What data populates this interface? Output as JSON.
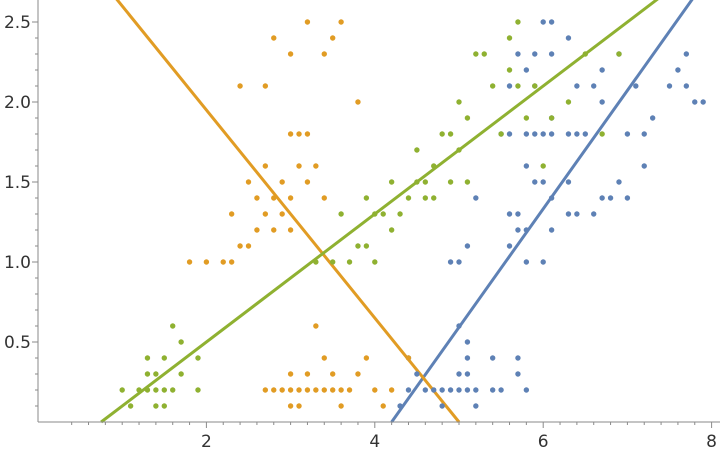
{
  "chart_data": {
    "type": "scatter",
    "xlim": [
      0.0,
      8.0
    ],
    "ylim": [
      0.0,
      2.6
    ],
    "x_ticks": [
      {
        "value": 2,
        "label": "2"
      },
      {
        "value": 4,
        "label": "4"
      },
      {
        "value": 6,
        "label": "6"
      },
      {
        "value": 8,
        "label": "8"
      }
    ],
    "y_ticks": [
      {
        "value": 0.5,
        "label": "0.5"
      },
      {
        "value": 1.0,
        "label": "1.0"
      },
      {
        "value": 1.5,
        "label": "1.5"
      },
      {
        "value": 2.0,
        "label": "2.0"
      },
      {
        "value": 2.5,
        "label": "2.5"
      }
    ],
    "x_minor_ticks": [
      0.4,
      0.6,
      0.8,
      1.0,
      1.2,
      1.4,
      1.6,
      1.8,
      2.2,
      2.4,
      2.6,
      2.8,
      3.0,
      3.2,
      3.4,
      3.6,
      3.8,
      4.2,
      4.4,
      4.6,
      4.8,
      5.0,
      5.2,
      5.4,
      5.6,
      5.8,
      6.2,
      6.4,
      6.6,
      6.8,
      7.0,
      7.2,
      7.4,
      7.6,
      7.8
    ],
    "y_minor_ticks": [
      0.1,
      0.2,
      0.3,
      0.4,
      0.6,
      0.7,
      0.8,
      0.9,
      1.1,
      1.2,
      1.3,
      1.4,
      1.6,
      1.7,
      1.8,
      1.9,
      2.1,
      2.2,
      2.3,
      2.4
    ],
    "grid": false,
    "legend": "none",
    "series": [
      {
        "color": "#5e81b5",
        "points": [
          [
            4.3,
            0.1
          ],
          [
            4.4,
            0.2
          ],
          [
            4.4,
            0.4
          ],
          [
            4.5,
            0.3
          ],
          [
            4.6,
            0.2
          ],
          [
            4.7,
            0.2
          ],
          [
            4.8,
            0.1
          ],
          [
            4.8,
            0.2
          ],
          [
            4.9,
            0.2
          ],
          [
            5.0,
            0.2
          ],
          [
            5.0,
            0.3
          ],
          [
            5.0,
            0.6
          ],
          [
            5.1,
            0.2
          ],
          [
            5.1,
            0.3
          ],
          [
            5.1,
            0.4
          ],
          [
            5.1,
            0.5
          ],
          [
            5.2,
            0.1
          ],
          [
            5.2,
            0.2
          ],
          [
            5.4,
            0.2
          ],
          [
            5.4,
            0.4
          ],
          [
            5.5,
            0.2
          ],
          [
            5.7,
            0.3
          ],
          [
            5.7,
            0.4
          ],
          [
            5.8,
            0.2
          ],
          [
            4.9,
            1.0
          ],
          [
            5.0,
            1.0
          ],
          [
            5.1,
            1.1
          ],
          [
            5.2,
            1.4
          ],
          [
            5.6,
            1.1
          ],
          [
            5.6,
            1.3
          ],
          [
            5.7,
            1.2
          ],
          [
            5.7,
            1.3
          ],
          [
            5.8,
            1.0
          ],
          [
            5.8,
            1.2
          ],
          [
            5.9,
            1.5
          ],
          [
            6.0,
            1.0
          ],
          [
            6.0,
            1.5
          ],
          [
            6.1,
            1.2
          ],
          [
            6.1,
            1.4
          ],
          [
            6.3,
            1.3
          ],
          [
            6.4,
            1.3
          ],
          [
            6.6,
            1.3
          ],
          [
            6.7,
            1.4
          ],
          [
            6.8,
            1.4
          ],
          [
            6.9,
            1.5
          ],
          [
            7.0,
            1.4
          ],
          [
            5.5,
            1.8
          ],
          [
            5.6,
            1.8
          ],
          [
            5.6,
            2.1
          ],
          [
            5.7,
            2.3
          ],
          [
            5.8,
            1.6
          ],
          [
            5.8,
            1.8
          ],
          [
            5.8,
            2.2
          ],
          [
            5.9,
            1.8
          ],
          [
            5.9,
            2.1
          ],
          [
            5.9,
            2.3
          ],
          [
            6.0,
            1.8
          ],
          [
            6.0,
            2.5
          ],
          [
            6.1,
            1.8
          ],
          [
            6.1,
            1.9
          ],
          [
            6.1,
            2.3
          ],
          [
            6.1,
            2.5
          ],
          [
            6.3,
            1.5
          ],
          [
            6.3,
            1.8
          ],
          [
            6.3,
            2.4
          ],
          [
            6.4,
            1.8
          ],
          [
            6.4,
            2.1
          ],
          [
            6.5,
            1.8
          ],
          [
            6.6,
            2.1
          ],
          [
            6.7,
            2.0
          ],
          [
            6.7,
            2.2
          ],
          [
            6.9,
            2.3
          ],
          [
            7.0,
            1.8
          ],
          [
            7.1,
            2.1
          ],
          [
            7.2,
            1.6
          ],
          [
            7.2,
            1.8
          ],
          [
            7.3,
            1.9
          ],
          [
            7.5,
            2.1
          ],
          [
            7.6,
            2.2
          ],
          [
            7.7,
            2.1
          ],
          [
            7.7,
            2.3
          ],
          [
            7.8,
            2.0
          ],
          [
            7.9,
            2.0
          ]
        ]
      },
      {
        "color": "#e19c24",
        "points": [
          [
            2.7,
            0.2
          ],
          [
            2.8,
            0.2
          ],
          [
            2.9,
            0.2
          ],
          [
            3.0,
            0.2
          ],
          [
            3.0,
            0.1
          ],
          [
            3.0,
            0.3
          ],
          [
            3.1,
            0.2
          ],
          [
            3.1,
            0.1
          ],
          [
            3.2,
            0.2
          ],
          [
            3.2,
            0.3
          ],
          [
            3.3,
            0.2
          ],
          [
            3.4,
            0.2
          ],
          [
            3.4,
            0.4
          ],
          [
            3.5,
            0.2
          ],
          [
            3.5,
            0.3
          ],
          [
            3.6,
            0.2
          ],
          [
            3.6,
            0.1
          ],
          [
            3.7,
            0.2
          ],
          [
            3.8,
            0.3
          ],
          [
            3.9,
            0.4
          ],
          [
            4.0,
            0.2
          ],
          [
            4.1,
            0.1
          ],
          [
            4.2,
            0.2
          ],
          [
            4.4,
            0.4
          ],
          [
            3.3,
            0.6
          ],
          [
            1.8,
            1.0
          ],
          [
            2.0,
            1.0
          ],
          [
            2.2,
            1.0
          ],
          [
            2.3,
            1.0
          ],
          [
            2.3,
            1.3
          ],
          [
            2.4,
            1.1
          ],
          [
            2.5,
            1.1
          ],
          [
            2.5,
            1.5
          ],
          [
            2.6,
            1.2
          ],
          [
            2.6,
            1.4
          ],
          [
            2.7,
            1.6
          ],
          [
            2.7,
            1.3
          ],
          [
            2.8,
            1.2
          ],
          [
            2.8,
            1.4
          ],
          [
            2.9,
            1.3
          ],
          [
            2.9,
            1.5
          ],
          [
            3.0,
            1.2
          ],
          [
            3.0,
            1.4
          ],
          [
            3.0,
            1.8
          ],
          [
            3.1,
            1.6
          ],
          [
            3.1,
            1.8
          ],
          [
            3.2,
            1.5
          ],
          [
            3.2,
            1.8
          ],
          [
            3.3,
            1.6
          ],
          [
            3.4,
            1.4
          ],
          [
            3.4,
            2.3
          ],
          [
            3.5,
            2.4
          ],
          [
            3.6,
            2.5
          ],
          [
            3.8,
            2.0
          ],
          [
            2.4,
            2.1
          ],
          [
            2.7,
            2.1
          ],
          [
            3.0,
            2.3
          ],
          [
            3.2,
            2.5
          ],
          [
            2.8,
            2.4
          ]
        ]
      },
      {
        "color": "#8fb131",
        "points": [
          [
            1.0,
            0.2
          ],
          [
            1.1,
            0.1
          ],
          [
            1.2,
            0.2
          ],
          [
            1.3,
            0.2
          ],
          [
            1.3,
            0.3
          ],
          [
            1.3,
            0.4
          ],
          [
            1.4,
            0.1
          ],
          [
            1.4,
            0.2
          ],
          [
            1.4,
            0.3
          ],
          [
            1.5,
            0.1
          ],
          [
            1.5,
            0.2
          ],
          [
            1.5,
            0.4
          ],
          [
            1.6,
            0.2
          ],
          [
            1.6,
            0.6
          ],
          [
            1.7,
            0.3
          ],
          [
            1.7,
            0.5
          ],
          [
            1.9,
            0.2
          ],
          [
            1.9,
            0.4
          ],
          [
            3.3,
            1.0
          ],
          [
            3.5,
            1.0
          ],
          [
            3.6,
            1.3
          ],
          [
            3.7,
            1.0
          ],
          [
            3.8,
            1.1
          ],
          [
            3.9,
            1.1
          ],
          [
            3.9,
            1.4
          ],
          [
            4.0,
            1.0
          ],
          [
            4.0,
            1.3
          ],
          [
            4.1,
            1.3
          ],
          [
            4.2,
            1.2
          ],
          [
            4.2,
            1.5
          ],
          [
            4.3,
            1.3
          ],
          [
            4.4,
            1.4
          ],
          [
            4.5,
            1.5
          ],
          [
            4.5,
            1.7
          ],
          [
            4.6,
            1.4
          ],
          [
            4.6,
            1.5
          ],
          [
            4.7,
            1.4
          ],
          [
            4.7,
            1.6
          ],
          [
            4.8,
            1.8
          ],
          [
            4.9,
            1.5
          ],
          [
            4.9,
            1.8
          ],
          [
            5.0,
            1.7
          ],
          [
            5.0,
            2.0
          ],
          [
            5.1,
            1.5
          ],
          [
            5.1,
            1.9
          ],
          [
            5.2,
            2.3
          ],
          [
            5.3,
            2.3
          ],
          [
            5.4,
            2.1
          ],
          [
            5.5,
            1.8
          ],
          [
            5.6,
            2.4
          ],
          [
            5.7,
            2.5
          ],
          [
            5.8,
            1.9
          ],
          [
            6.0,
            1.6
          ],
          [
            6.1,
            1.9
          ],
          [
            6.3,
            2.0
          ],
          [
            6.5,
            2.3
          ],
          [
            6.7,
            1.8
          ],
          [
            6.9,
            2.3
          ],
          [
            5.6,
            2.2
          ],
          [
            5.7,
            2.1
          ],
          [
            5.9,
            2.1
          ]
        ]
      }
    ],
    "fit_lines": [
      {
        "color": "#5e81b5",
        "x_at_y0": 4.2,
        "slope": 0.74
      },
      {
        "color": "#e19c24",
        "x_at_y0": 5.0,
        "slope": -0.65
      },
      {
        "color": "#8fb131",
        "x_at_y0": 0.75,
        "slope": 0.4
      }
    ]
  }
}
